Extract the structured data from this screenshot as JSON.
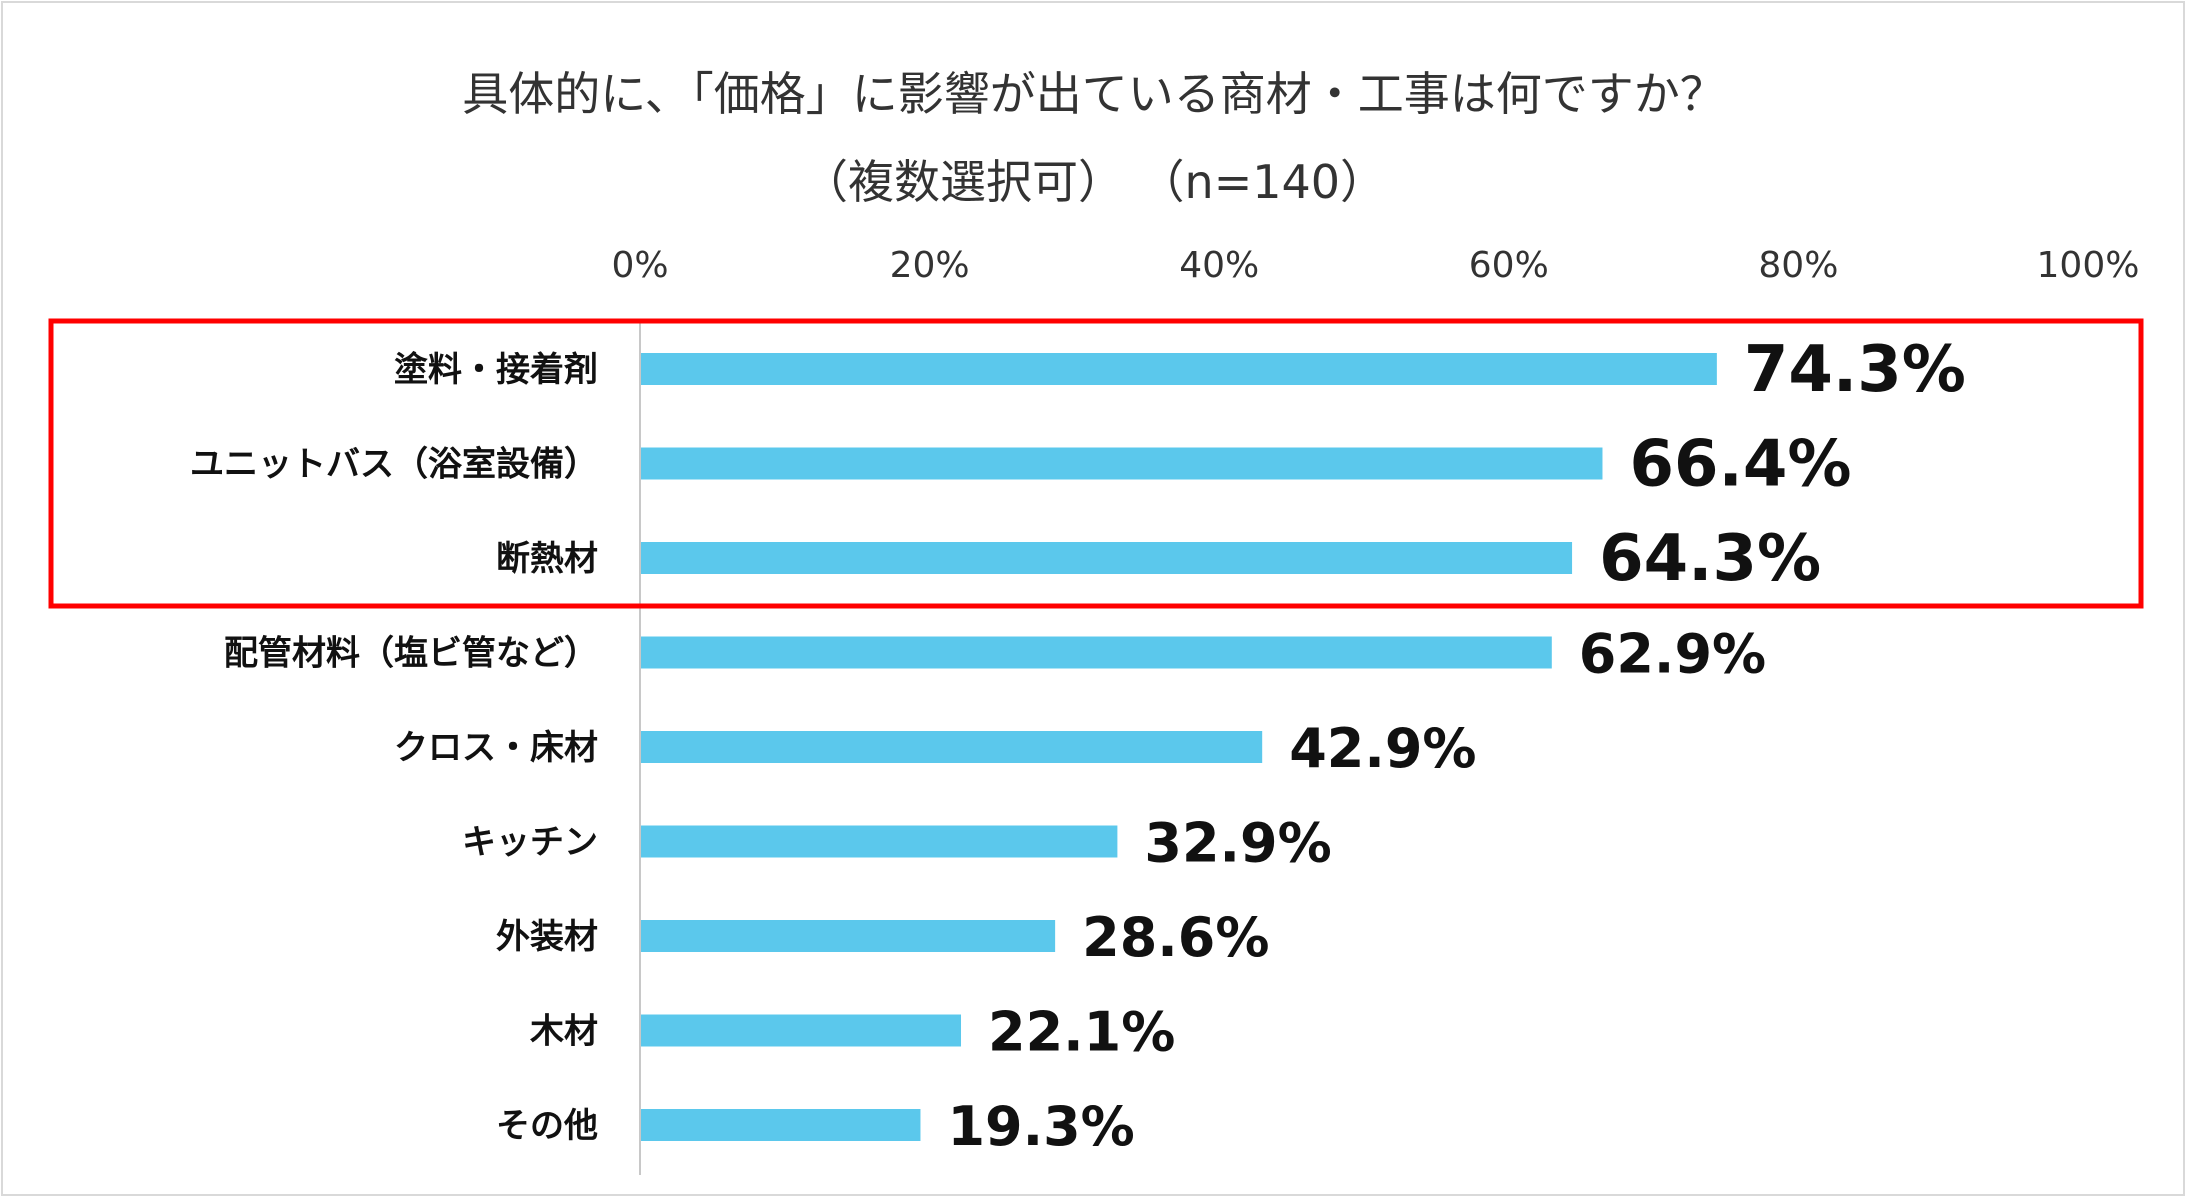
{
  "chart_data": {
    "type": "bar",
    "orientation": "horizontal",
    "title": "具体的に、「価格」に影響が出ている商材・工事は何ですか？",
    "subtitle": "（複数選択可） （n=140）",
    "categories": [
      "塗料・接着剤",
      "ユニットバス（浴室設備）",
      "断熱材",
      "配管材料（塩ビ管など）",
      "クロス・床材",
      "キッチン",
      "外装材",
      "木材",
      "その他"
    ],
    "values": [
      74.3,
      66.4,
      64.3,
      62.9,
      42.9,
      32.9,
      28.6,
      22.1,
      19.3
    ],
    "value_labels": [
      "74.3%",
      "66.4%",
      "64.3%",
      "62.9%",
      "42.9%",
      "32.9%",
      "28.6%",
      "22.1%",
      "19.3%"
    ],
    "x_ticks": [
      "0%",
      "20%",
      "40%",
      "60%",
      "80%",
      "100%"
    ],
    "xlim": [
      0,
      100
    ],
    "axis_position": "top",
    "grid": false,
    "bar_color": "#5bc8ec",
    "highlight_color": "#ff0000",
    "highlighted_indices": [
      0,
      1,
      2
    ]
  }
}
